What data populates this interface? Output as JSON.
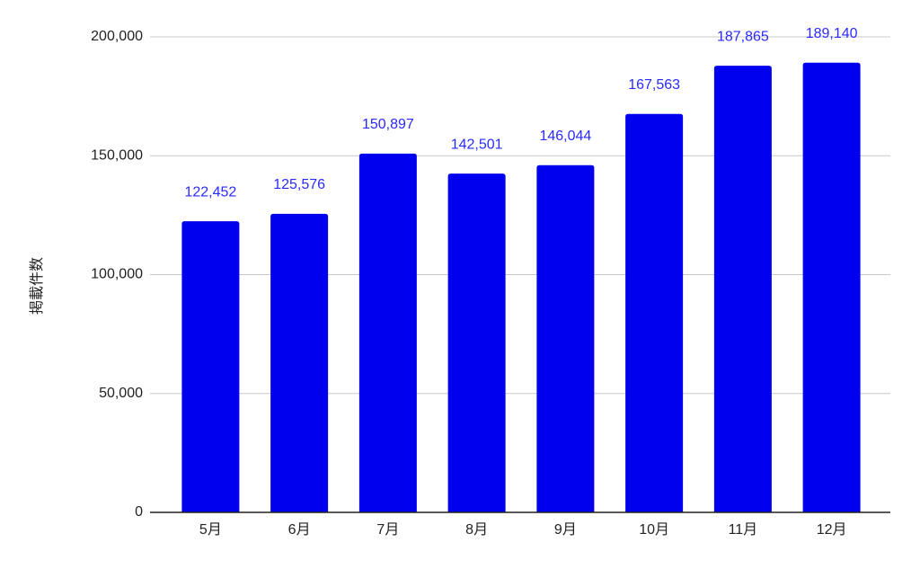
{
  "chart_data": {
    "type": "bar",
    "y_label": "掲載件数",
    "categories": [
      "5月",
      "6月",
      "7月",
      "8月",
      "9月",
      "10月",
      "11月",
      "12月"
    ],
    "values": [
      122452,
      125576,
      150897,
      142501,
      146044,
      167563,
      187865,
      189140
    ],
    "value_labels": [
      "122,452",
      "125,576",
      "150,897",
      "142,501",
      "146,044",
      "167,563",
      "187,865",
      "189,140"
    ],
    "color": "#0000ee",
    "ylim": [
      0,
      200000
    ],
    "yticks": [
      0,
      {
        "value": 50000,
        "label": "50,000"
      },
      {
        "value": 100000,
        "label": "100,000"
      },
      {
        "value": 150000,
        "label": "150,000"
      },
      {
        "value": 200000,
        "label": "200,000"
      }
    ],
    "grid": true
  }
}
